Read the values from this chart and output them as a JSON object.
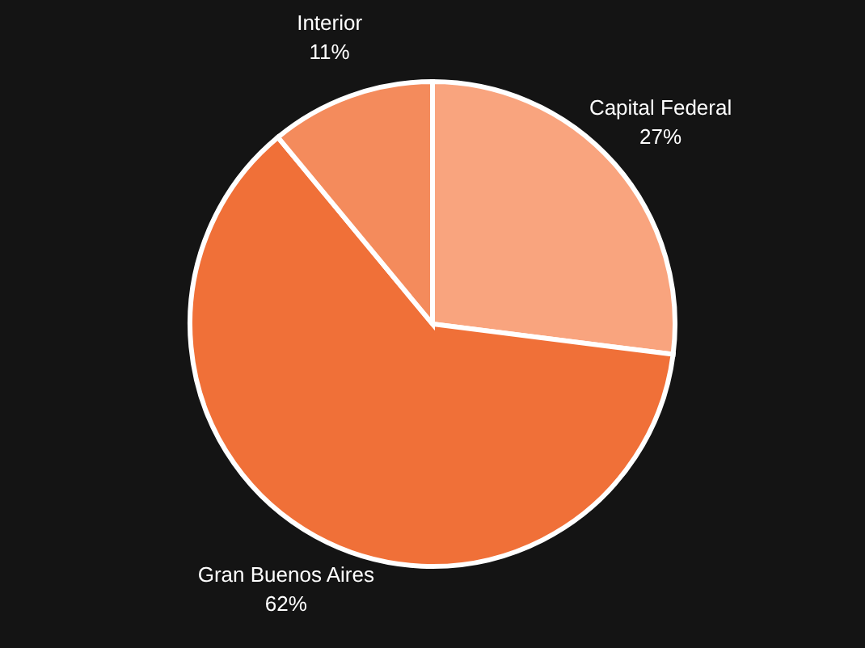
{
  "chart_data": {
    "type": "pie",
    "categories": [
      "Capital Federal",
      "Gran Buenos Aires",
      "Interior"
    ],
    "values": [
      27,
      62,
      11
    ],
    "colors": [
      "#f9a47e",
      "#f07038",
      "#f48b5c"
    ],
    "value_labels": [
      "27%",
      "62%",
      "11%"
    ]
  }
}
